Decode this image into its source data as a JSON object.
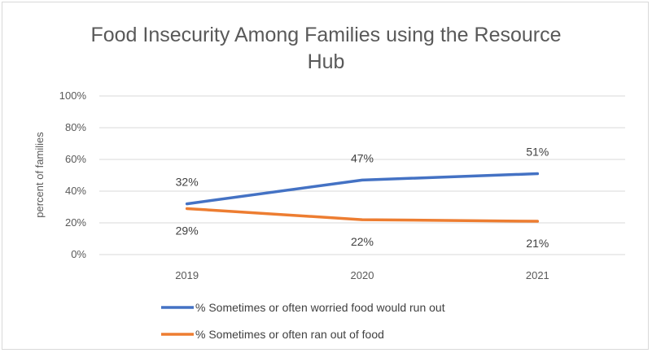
{
  "chart_data": {
    "type": "line",
    "title": "Food Insecurity Among Families using the Resource Hub",
    "xlabel": "",
    "ylabel": "percent of families",
    "categories": [
      "2019",
      "2020",
      "2021"
    ],
    "ylim": [
      0,
      100
    ],
    "yticks": [
      "0%",
      "20%",
      "40%",
      "60%",
      "80%",
      "100%"
    ],
    "grid": true,
    "legend_position": "bottom",
    "series": [
      {
        "name": "% Sometimes or often worried food would run out",
        "values": [
          32,
          47,
          51
        ],
        "labels": [
          "32%",
          "47%",
          "51%"
        ],
        "color": "#4472c4"
      },
      {
        "name": "% Sometimes or often ran out of food",
        "values": [
          29,
          22,
          21
        ],
        "labels": [
          "29%",
          "22%",
          "21%"
        ],
        "color": "#ed7d31"
      }
    ]
  }
}
